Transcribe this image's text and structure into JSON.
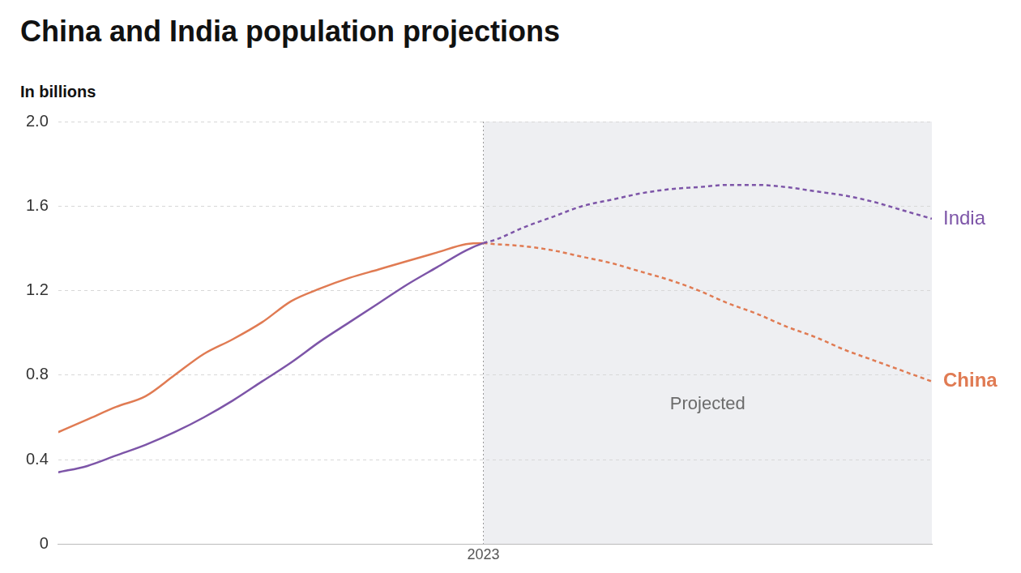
{
  "chart_data": {
    "type": "line",
    "title": "China and India population projections",
    "subtitle": "In billions",
    "x": [
      1950,
      1955,
      1960,
      1965,
      1970,
      1975,
      1980,
      1985,
      1990,
      1995,
      2000,
      2005,
      2010,
      2015,
      2020,
      2023,
      2025,
      2030,
      2035,
      2040,
      2045,
      2050,
      2055,
      2060,
      2065,
      2070,
      2075,
      2080,
      2085,
      2090,
      2095,
      2100
    ],
    "series": [
      {
        "name": "India",
        "color": "#7d55a8",
        "values": [
          0.34,
          0.37,
          0.42,
          0.47,
          0.53,
          0.6,
          0.68,
          0.77,
          0.86,
          0.96,
          1.05,
          1.14,
          1.23,
          1.31,
          1.39,
          1.425,
          1.44,
          1.5,
          1.55,
          1.6,
          1.63,
          1.66,
          1.68,
          1.69,
          1.7,
          1.7,
          1.69,
          1.67,
          1.65,
          1.62,
          1.58,
          1.54
        ]
      },
      {
        "name": "China",
        "color": "#e07b53",
        "values": [
          0.53,
          0.59,
          0.65,
          0.7,
          0.8,
          0.9,
          0.97,
          1.05,
          1.15,
          1.21,
          1.26,
          1.3,
          1.34,
          1.38,
          1.42,
          1.425,
          1.42,
          1.41,
          1.39,
          1.36,
          1.33,
          1.29,
          1.25,
          1.2,
          1.14,
          1.09,
          1.03,
          0.98,
          0.92,
          0.87,
          0.82,
          0.77
        ]
      }
    ],
    "xlim": [
      1950,
      2100
    ],
    "xticks": [
      2023
    ],
    "ylim": [
      0,
      2
    ],
    "yticks": [
      0,
      0.4,
      0.8,
      1.2,
      1.6,
      {
        "value": 2,
        "label": "2.0"
      }
    ],
    "grid": true,
    "annotations": [
      {
        "text": "Projected",
        "x_range": [
          2023,
          2100
        ],
        "line_style": "dashed"
      }
    ]
  }
}
